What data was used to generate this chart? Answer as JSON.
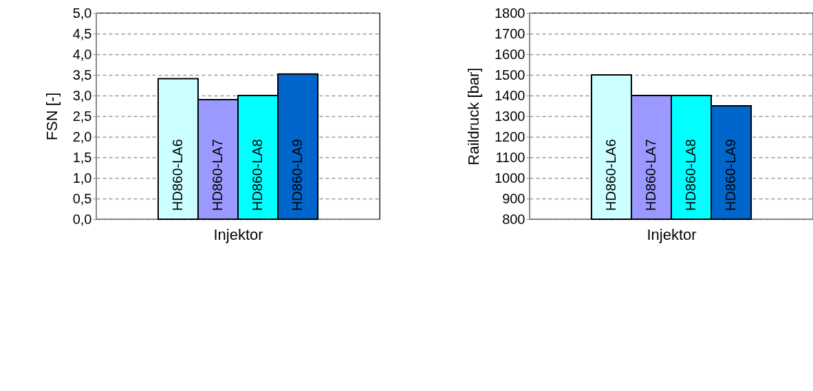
{
  "chart_data": [
    {
      "type": "bar",
      "xlabel": "Injektor",
      "ylabel": "FSN [-]",
      "categories": [
        null
      ],
      "ylim": [
        0,
        5
      ],
      "yticks": [
        {
          "value": 0,
          "label": "0,0"
        },
        {
          "value": 0.5,
          "label": "0,5"
        },
        {
          "value": 1,
          "label": "1,0"
        },
        {
          "value": 1.5,
          "label": "1,5"
        },
        {
          "value": 2,
          "label": "2,0"
        },
        {
          "value": 2.5,
          "label": "2,5"
        },
        {
          "value": 3,
          "label": "3,0"
        },
        {
          "value": 3.5,
          "label": "3,5"
        },
        {
          "value": 4,
          "label": "4,0"
        },
        {
          "value": 4.5,
          "label": "4,5"
        },
        {
          "value": 5,
          "label": "5,0"
        }
      ],
      "grid": "y",
      "legend": false,
      "series": [
        {
          "name": "HD860-LA6",
          "color": "#ccffff",
          "values": [
            3.41
          ]
        },
        {
          "name": "HD860-LA7",
          "color": "#9999ff",
          "values": [
            2.9
          ]
        },
        {
          "name": "HD860-LA8",
          "color": "#00ffff",
          "values": [
            3.0
          ]
        },
        {
          "name": "HD860-LA9",
          "color": "#0066cc",
          "values": [
            3.52
          ]
        }
      ]
    },
    {
      "type": "bar",
      "xlabel": "Injektor",
      "ylabel": "Raildruck [bar]",
      "categories": [
        null
      ],
      "ylim": [
        800,
        1800
      ],
      "yticks": [
        800,
        900,
        1000,
        1100,
        1200,
        1300,
        1400,
        1500,
        1600,
        1700,
        1800
      ],
      "grid": "y",
      "legend": false,
      "series": [
        {
          "name": "HD860-LA6",
          "color": "#ccffff",
          "values": [
            1500
          ]
        },
        {
          "name": "HD860-LA7",
          "color": "#9999ff",
          "values": [
            1400
          ]
        },
        {
          "name": "HD860-LA8",
          "color": "#00ffff",
          "values": [
            1400
          ]
        },
        {
          "name": "HD860-LA9",
          "color": "#0066cc",
          "values": [
            1350
          ]
        }
      ]
    }
  ]
}
